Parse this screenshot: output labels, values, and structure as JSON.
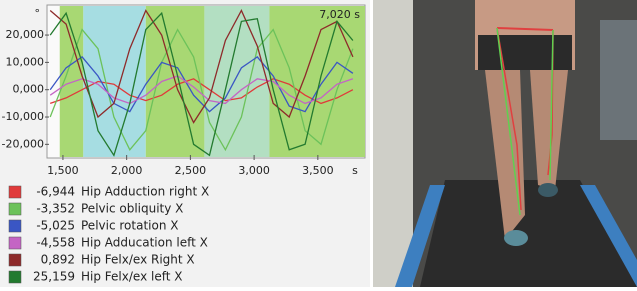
{
  "chart_data": {
    "type": "line",
    "annotation": "7,020 s",
    "y_label": "°",
    "x_label": "s",
    "xlim": [
      1375,
      3870
    ],
    "ylim": [
      -25,
      31
    ],
    "xticks": [
      {
        "value": 1500,
        "label": "1,500"
      },
      {
        "value": 2000,
        "label": "2,000"
      },
      {
        "value": 2500,
        "label": "2,500"
      },
      {
        "value": 3000,
        "label": "3,000"
      },
      {
        "value": 3500,
        "label": "3,500"
      }
    ],
    "yticks": [
      {
        "value": 20,
        "label": "20,000"
      },
      {
        "value": 10,
        "label": "10,000"
      },
      {
        "value": 0,
        "label": "0,000"
      },
      {
        "value": -10,
        "label": "-10,000"
      },
      {
        "value": -20,
        "label": "-20,000"
      }
    ],
    "grid": false,
    "bands": [
      {
        "from": 1475,
        "to": 1660,
        "color": "#a8d873"
      },
      {
        "from": 1660,
        "to": 2150,
        "color": "#a6dde2"
      },
      {
        "from": 2150,
        "to": 2610,
        "color": "#a8d873"
      },
      {
        "from": 2610,
        "to": 3120,
        "color": "#b3dfc2"
      },
      {
        "from": 3120,
        "to": 3870,
        "color": "#a8d873"
      }
    ],
    "x": [
      1400,
      1525,
      1650,
      1775,
      1900,
      2025,
      2150,
      2275,
      2400,
      2525,
      2650,
      2775,
      2900,
      3025,
      3150,
      3275,
      3400,
      3525,
      3650,
      3775
    ],
    "series": [
      {
        "name": "Hip Adduction right X",
        "readout": "-6,944",
        "color": "#e03a3a",
        "values": [
          -5,
          -3,
          0,
          3,
          2,
          -2,
          -4,
          -2,
          2,
          4,
          0,
          -4,
          -3,
          1,
          4,
          2,
          -2,
          -5,
          -3,
          0
        ]
      },
      {
        "name": "Pelvic obliquity X",
        "readout": "-3,352",
        "color": "#6cc25a",
        "values": [
          -10,
          5,
          22,
          15,
          -10,
          -22,
          -15,
          10,
          22,
          12,
          -12,
          -22,
          -10,
          15,
          22,
          8,
          -15,
          -20,
          0,
          15
        ]
      },
      {
        "name": "Pelvic rotation X",
        "readout": "-5,025",
        "color": "#3a56c4",
        "values": [
          0,
          8,
          12,
          5,
          -5,
          -8,
          2,
          10,
          8,
          -2,
          -8,
          -3,
          8,
          12,
          5,
          -6,
          -8,
          2,
          10,
          6
        ]
      },
      {
        "name": "Hip Adducation left X",
        "readout": "-4,558",
        "color": "#c465c4",
        "values": [
          -2,
          2,
          4,
          2,
          -3,
          -5,
          -2,
          3,
          5,
          1,
          -4,
          -5,
          0,
          4,
          3,
          -2,
          -5,
          -3,
          2,
          4
        ]
      },
      {
        "name": "Hip Felx/ex Right X",
        "readout": "0,892",
        "color": "#8e2a2a",
        "values": [
          29,
          24,
          5,
          -10,
          -5,
          15,
          29,
          20,
          0,
          -12,
          -3,
          18,
          29,
          16,
          -5,
          -10,
          5,
          22,
          25,
          12
        ]
      },
      {
        "name": "Hip Felx/ex left X",
        "readout": "25,159",
        "color": "#237a2f",
        "values": [
          20,
          28,
          10,
          -15,
          -24,
          -5,
          22,
          28,
          5,
          -20,
          -24,
          0,
          25,
          26,
          0,
          -22,
          -20,
          5,
          25,
          18
        ]
      }
    ]
  }
}
